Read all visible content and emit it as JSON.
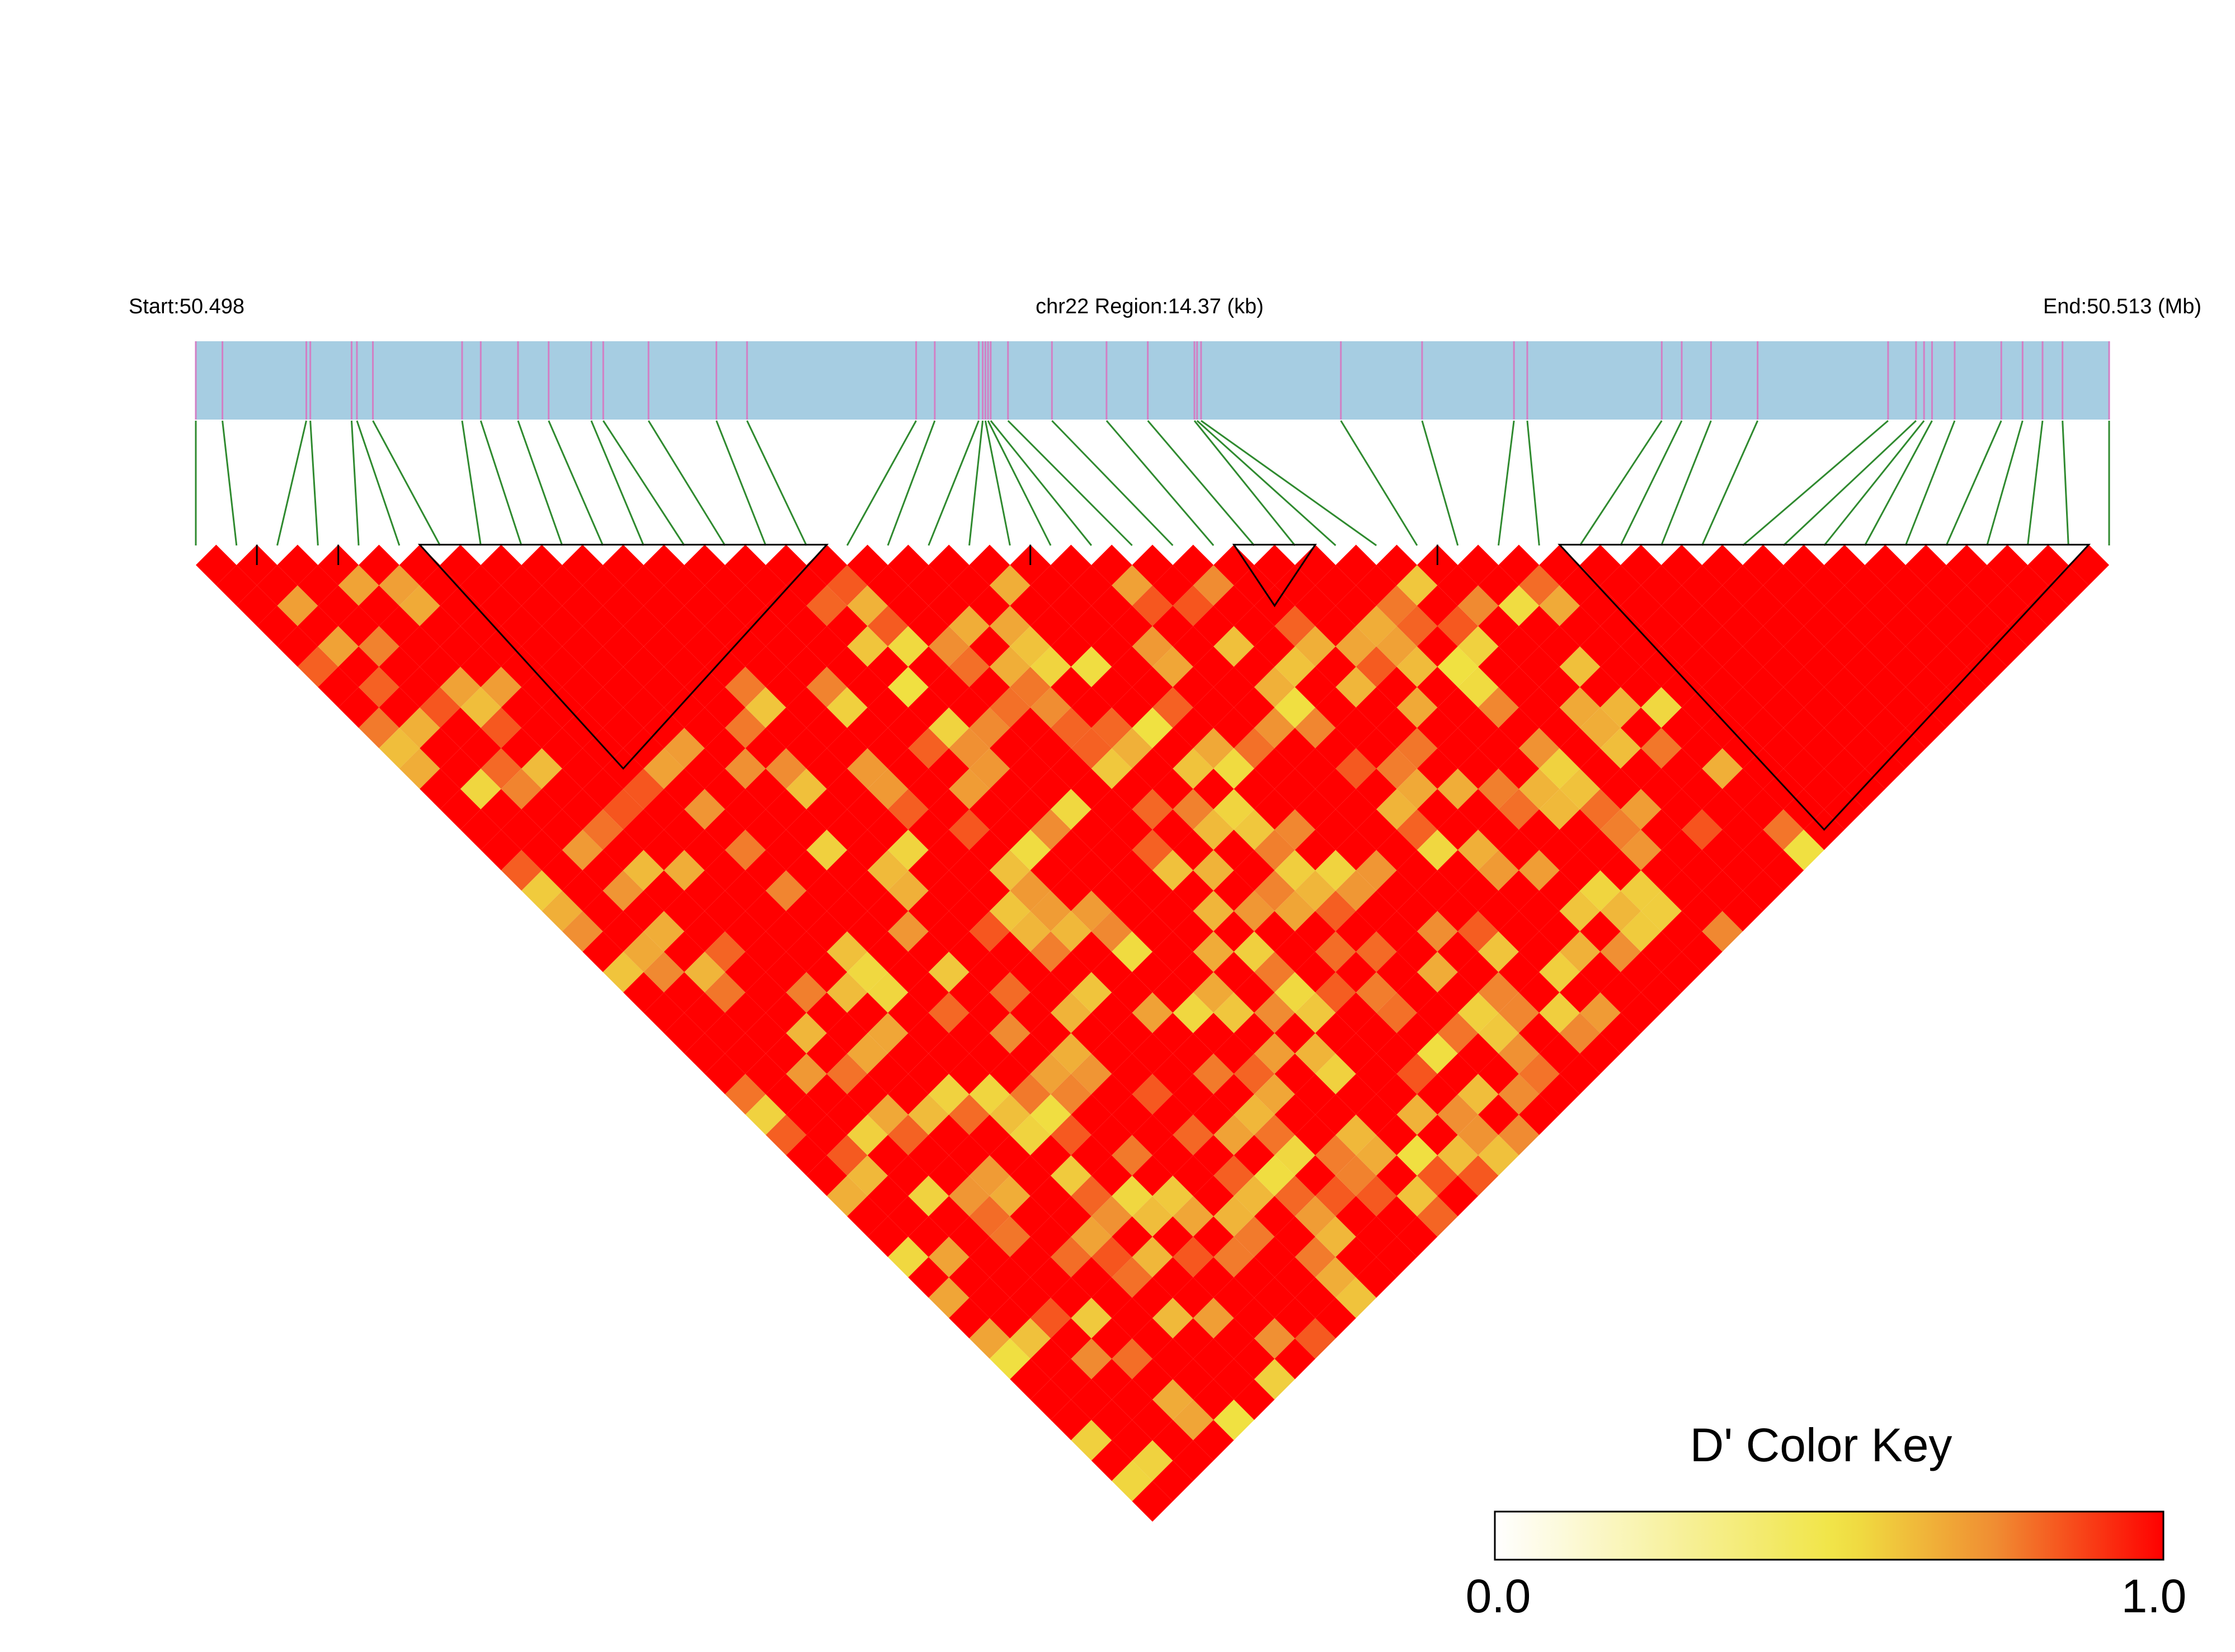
{
  "chart_data": {
    "type": "heatmap",
    "title": "",
    "region": {
      "start_label": "Start:50.498",
      "center_label": "chr22 Region:14.37 (kb)",
      "end_label": "End:50.513 (Mb)",
      "start_mb": 50.498,
      "end_mb": 50.513
    },
    "snp_positions_kb": [
      0.0,
      0.2,
      0.83,
      0.86,
      1.17,
      1.21,
      1.33,
      2.0,
      2.14,
      2.42,
      2.65,
      2.97,
      3.06,
      3.4,
      3.91,
      4.14,
      5.41,
      5.55,
      5.88,
      5.91,
      5.93,
      5.95,
      5.97,
      6.1,
      6.43,
      6.84,
      7.15,
      7.5,
      7.52,
      7.55,
      8.6,
      9.21,
      9.9,
      10.0,
      11.01,
      11.16,
      11.38,
      11.73,
      12.71,
      12.92,
      12.98,
      13.04,
      13.21,
      13.56,
      13.72,
      13.87,
      14.02,
      14.37
    ],
    "color_key": {
      "title": "D' Color Key",
      "min_label": "0.0",
      "max_label": "1.0",
      "min": 0.0,
      "max": 1.0,
      "colors": [
        "#ffffff",
        "#f0e442",
        "#f08c32",
        "#ff0000"
      ]
    },
    "blocks": [
      [
        1,
        2
      ],
      [
        3,
        4
      ],
      [
        5,
        16
      ],
      [
        20,
        21
      ],
      [
        25,
        28
      ],
      [
        30,
        31
      ],
      [
        33,
        47
      ]
    ],
    "overall_strong_ld_fraction": 0.62
  }
}
